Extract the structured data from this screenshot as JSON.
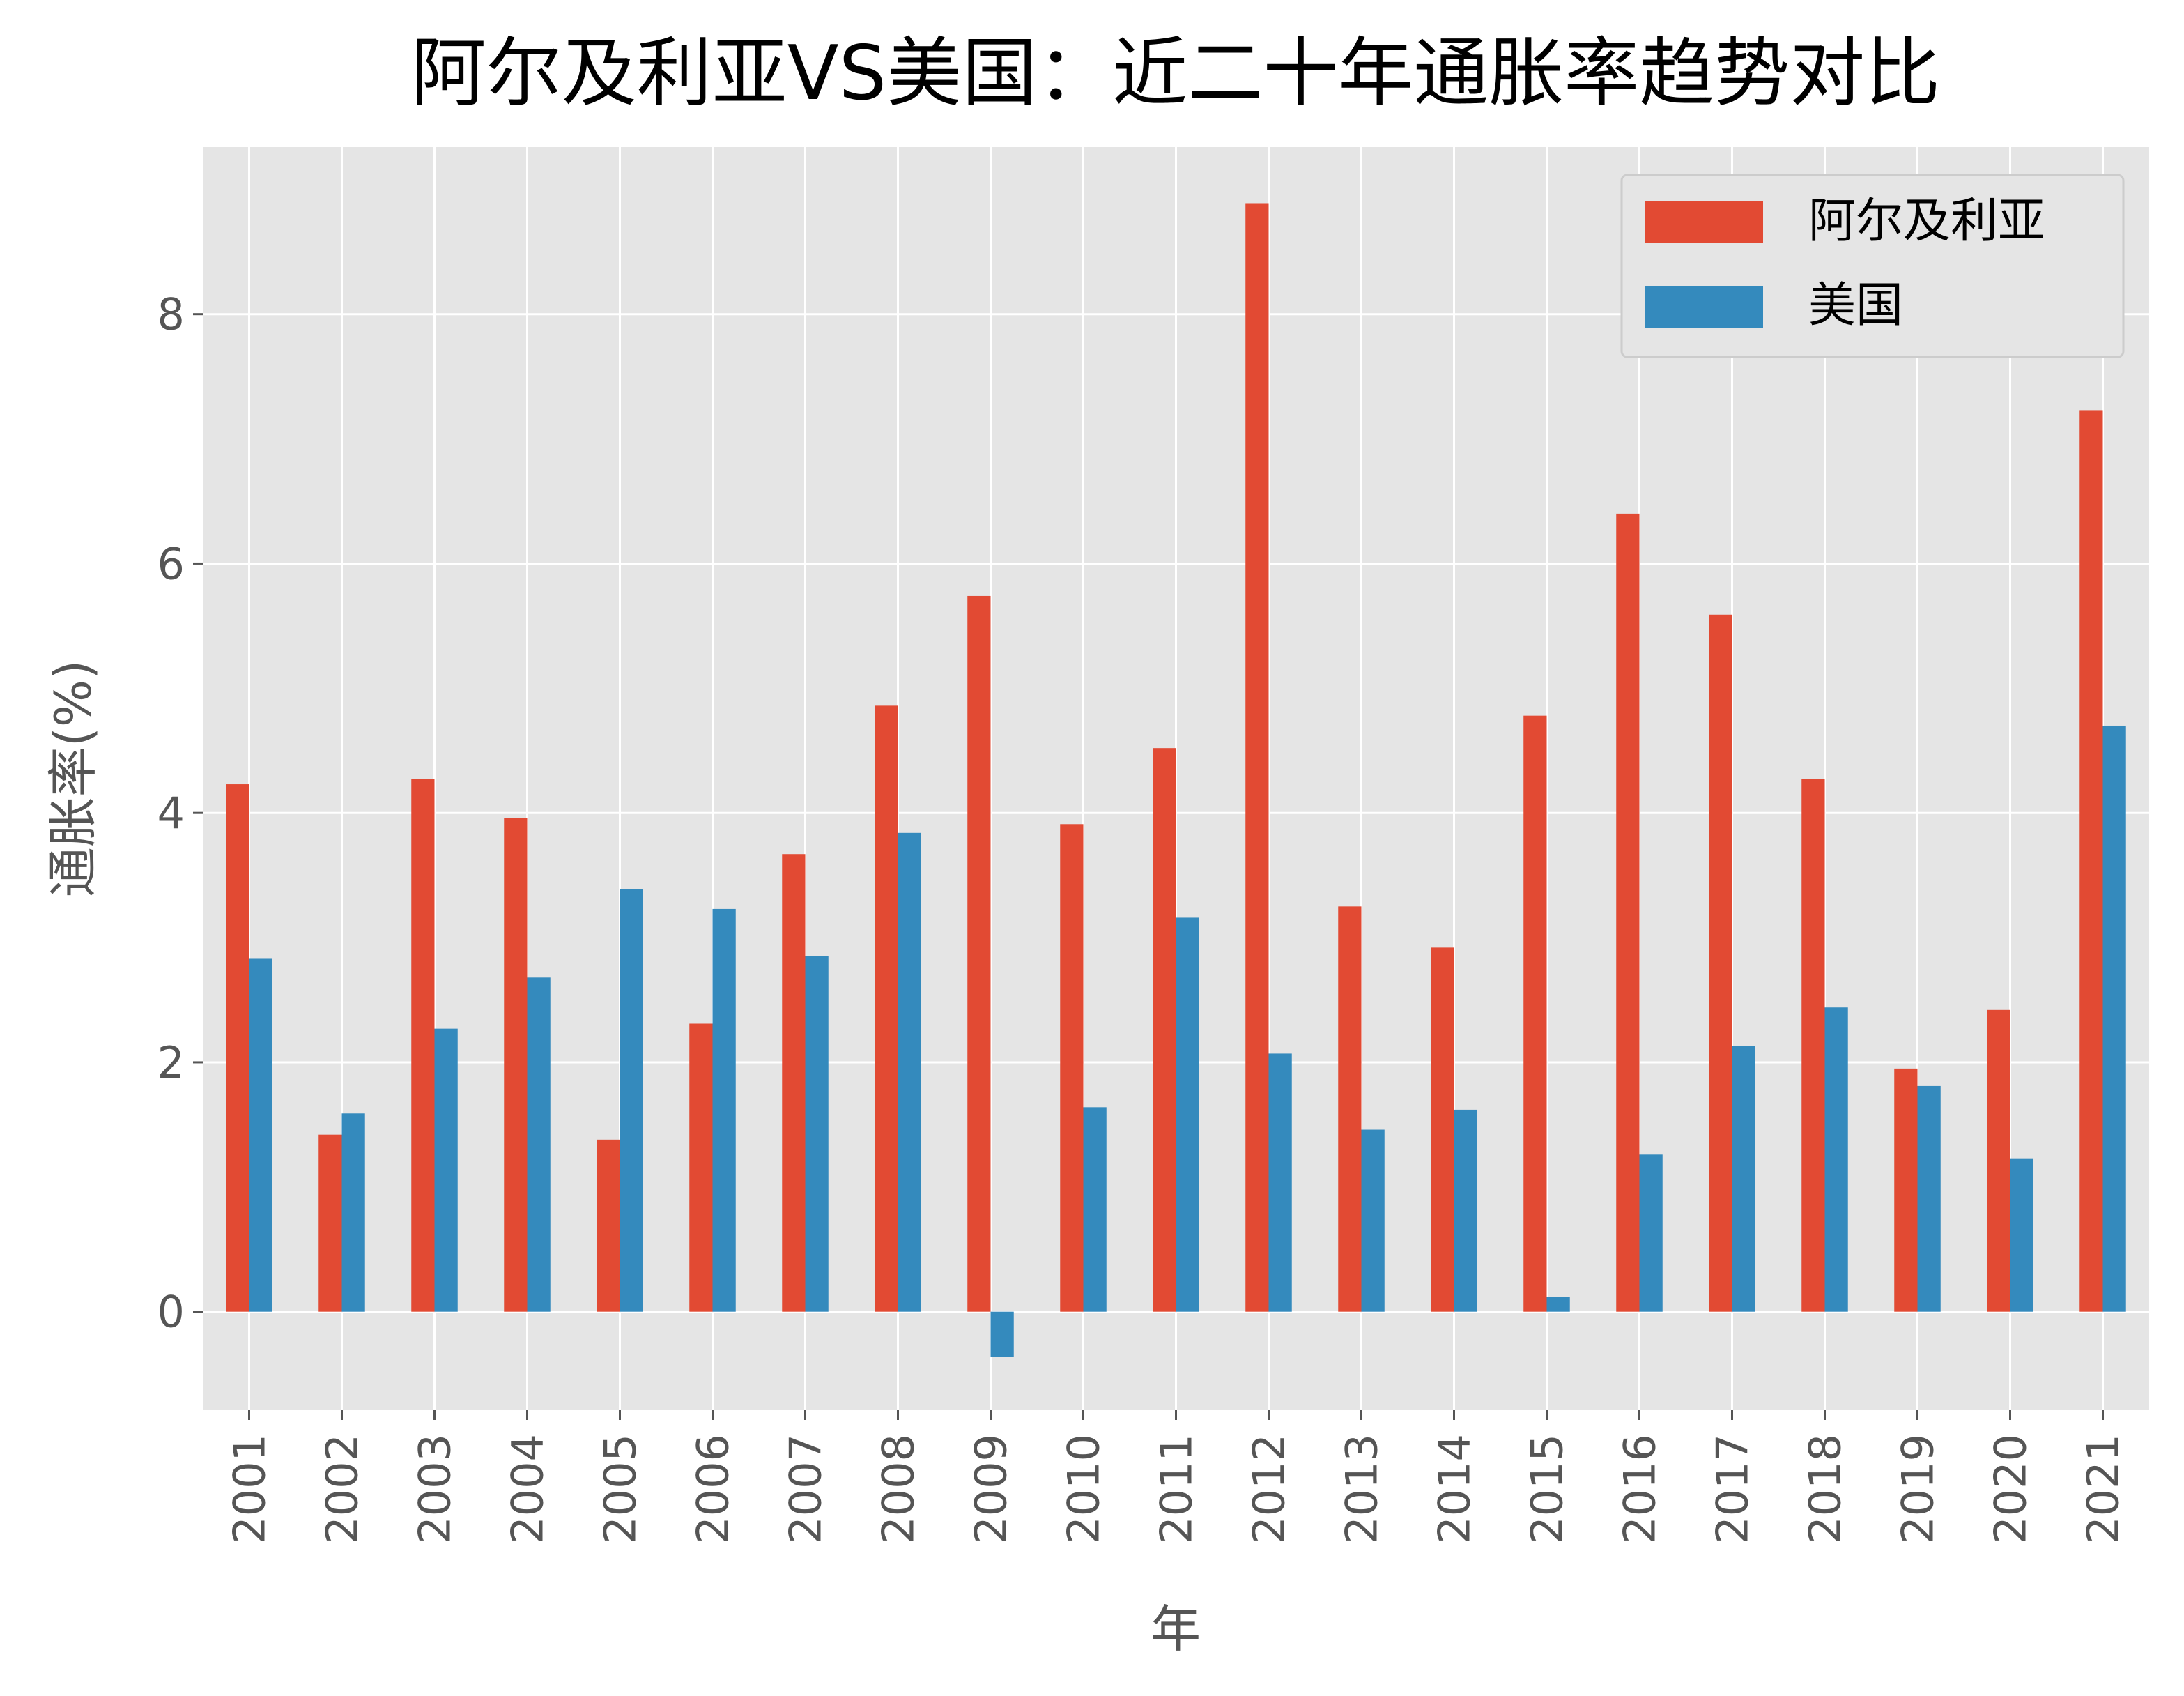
{
  "chart_data": {
    "type": "bar",
    "title": "阿尔及利亚VS美国：近二十年通胀率趋势对比",
    "xlabel": "年",
    "ylabel": "通胀率(%)",
    "ylim": [
      -0.79,
      9.34
    ],
    "yticks": [
      0,
      2,
      4,
      6,
      8
    ],
    "grid": true,
    "legend_position": "top-right",
    "categories": [
      "2001",
      "2002",
      "2003",
      "2004",
      "2005",
      "2006",
      "2007",
      "2008",
      "2009",
      "2010",
      "2011",
      "2012",
      "2013",
      "2014",
      "2015",
      "2016",
      "2017",
      "2018",
      "2019",
      "2020",
      "2021"
    ],
    "series": [
      {
        "name": "阿尔及利亚",
        "color": "#E24A33",
        "values": [
          4.23,
          1.42,
          4.27,
          3.96,
          1.38,
          2.31,
          3.67,
          4.86,
          5.74,
          3.91,
          4.52,
          8.89,
          3.25,
          2.92,
          4.78,
          6.4,
          5.59,
          4.27,
          1.95,
          2.42,
          7.23
        ]
      },
      {
        "name": "美国",
        "color": "#348ABD",
        "values": [
          2.83,
          1.59,
          2.27,
          2.68,
          3.39,
          3.23,
          2.85,
          3.84,
          -0.36,
          1.64,
          3.16,
          2.07,
          1.46,
          1.62,
          0.12,
          1.26,
          2.13,
          2.44,
          1.81,
          1.23,
          4.7
        ]
      }
    ],
    "background": "#E5E5E5"
  }
}
